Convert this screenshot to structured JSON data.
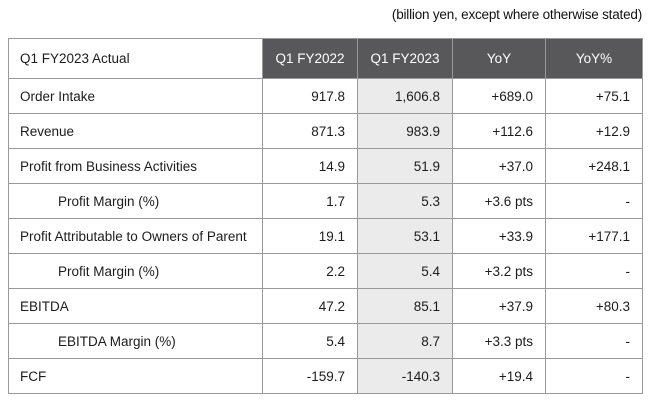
{
  "note": "(billion yen, except where otherwise stated)",
  "table": {
    "corner_label": "Q1 FY2023 Actual",
    "columns": [
      "Q1 FY2022",
      "Q1 FY2023",
      "YoY",
      "YoY%"
    ],
    "highlighted_column": "Q1 FY2023",
    "rows": [
      {
        "label": "Order Intake",
        "indent": false,
        "values": [
          "917.8",
          "1,606.8",
          "+689.0",
          "+75.1"
        ]
      },
      {
        "label": "Revenue",
        "indent": false,
        "values": [
          "871.3",
          "983.9",
          "+112.6",
          "+12.9"
        ]
      },
      {
        "label": "Profit from Business Activities",
        "indent": false,
        "values": [
          "14.9",
          "51.9",
          "+37.0",
          "+248.1"
        ]
      },
      {
        "label": "Profit Margin (%)",
        "indent": true,
        "values": [
          "1.7",
          "5.3",
          "+3.6 pts",
          "-"
        ]
      },
      {
        "label": "Profit Attributable to Owners of Parent",
        "indent": false,
        "values": [
          "19.1",
          "53.1",
          "+33.9",
          "+177.1"
        ]
      },
      {
        "label": "Profit Margin (%)",
        "indent": true,
        "values": [
          "2.2",
          "5.4",
          "+3.2 pts",
          "-"
        ]
      },
      {
        "label": "EBITDA",
        "indent": false,
        "values": [
          "47.2",
          "85.1",
          "+37.9",
          "+80.3"
        ]
      },
      {
        "label": "EBITDA Margin (%)",
        "indent": true,
        "values": [
          "5.4",
          "8.7",
          "+3.3 pts",
          "-"
        ]
      },
      {
        "label": "FCF",
        "indent": false,
        "values": [
          "-159.7",
          "-140.3",
          "+19.4",
          "-"
        ]
      }
    ]
  },
  "colors": {
    "header_bg": "#58585a",
    "header_text": "#ffffff",
    "highlight_bg": "#ebebeb",
    "border": "#9a9a9a",
    "text": "#1c1c1c"
  }
}
